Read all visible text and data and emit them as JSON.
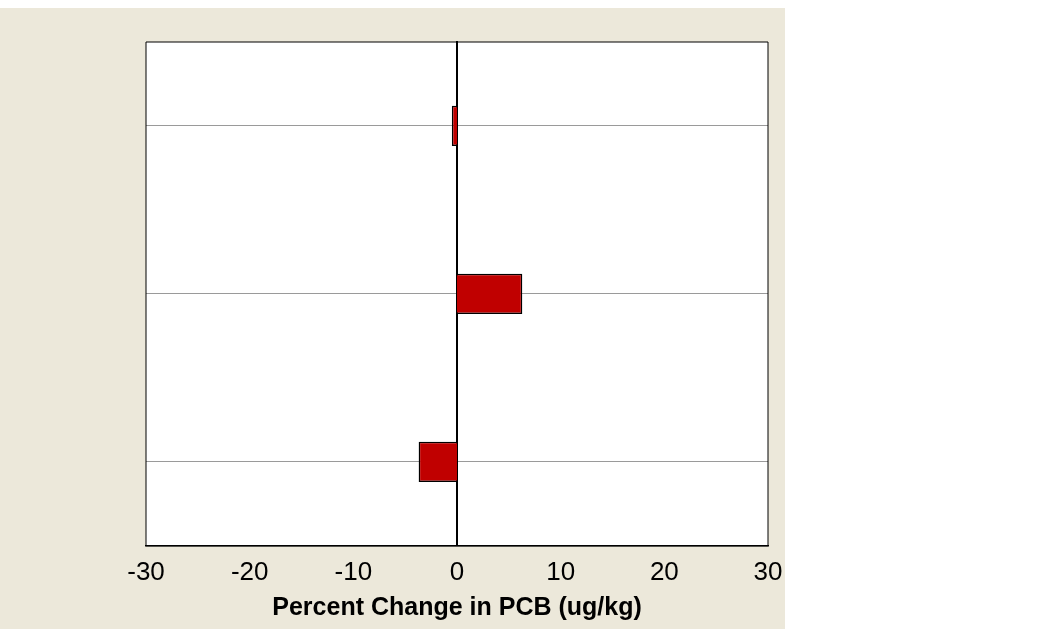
{
  "chart_data": {
    "type": "bar",
    "orientation": "horizontal",
    "xlabel": "Percent Change in PCB (ug/kg)",
    "categories": [
      null,
      null,
      null
    ],
    "values": [
      -0.5,
      6.3,
      -3.7
    ],
    "color": "#c00000",
    "xlim": [
      -30,
      30
    ],
    "xticks": [
      -30,
      -20,
      -10,
      0,
      10,
      20,
      30
    ],
    "grid": "y",
    "tick_labels": "x"
  }
}
